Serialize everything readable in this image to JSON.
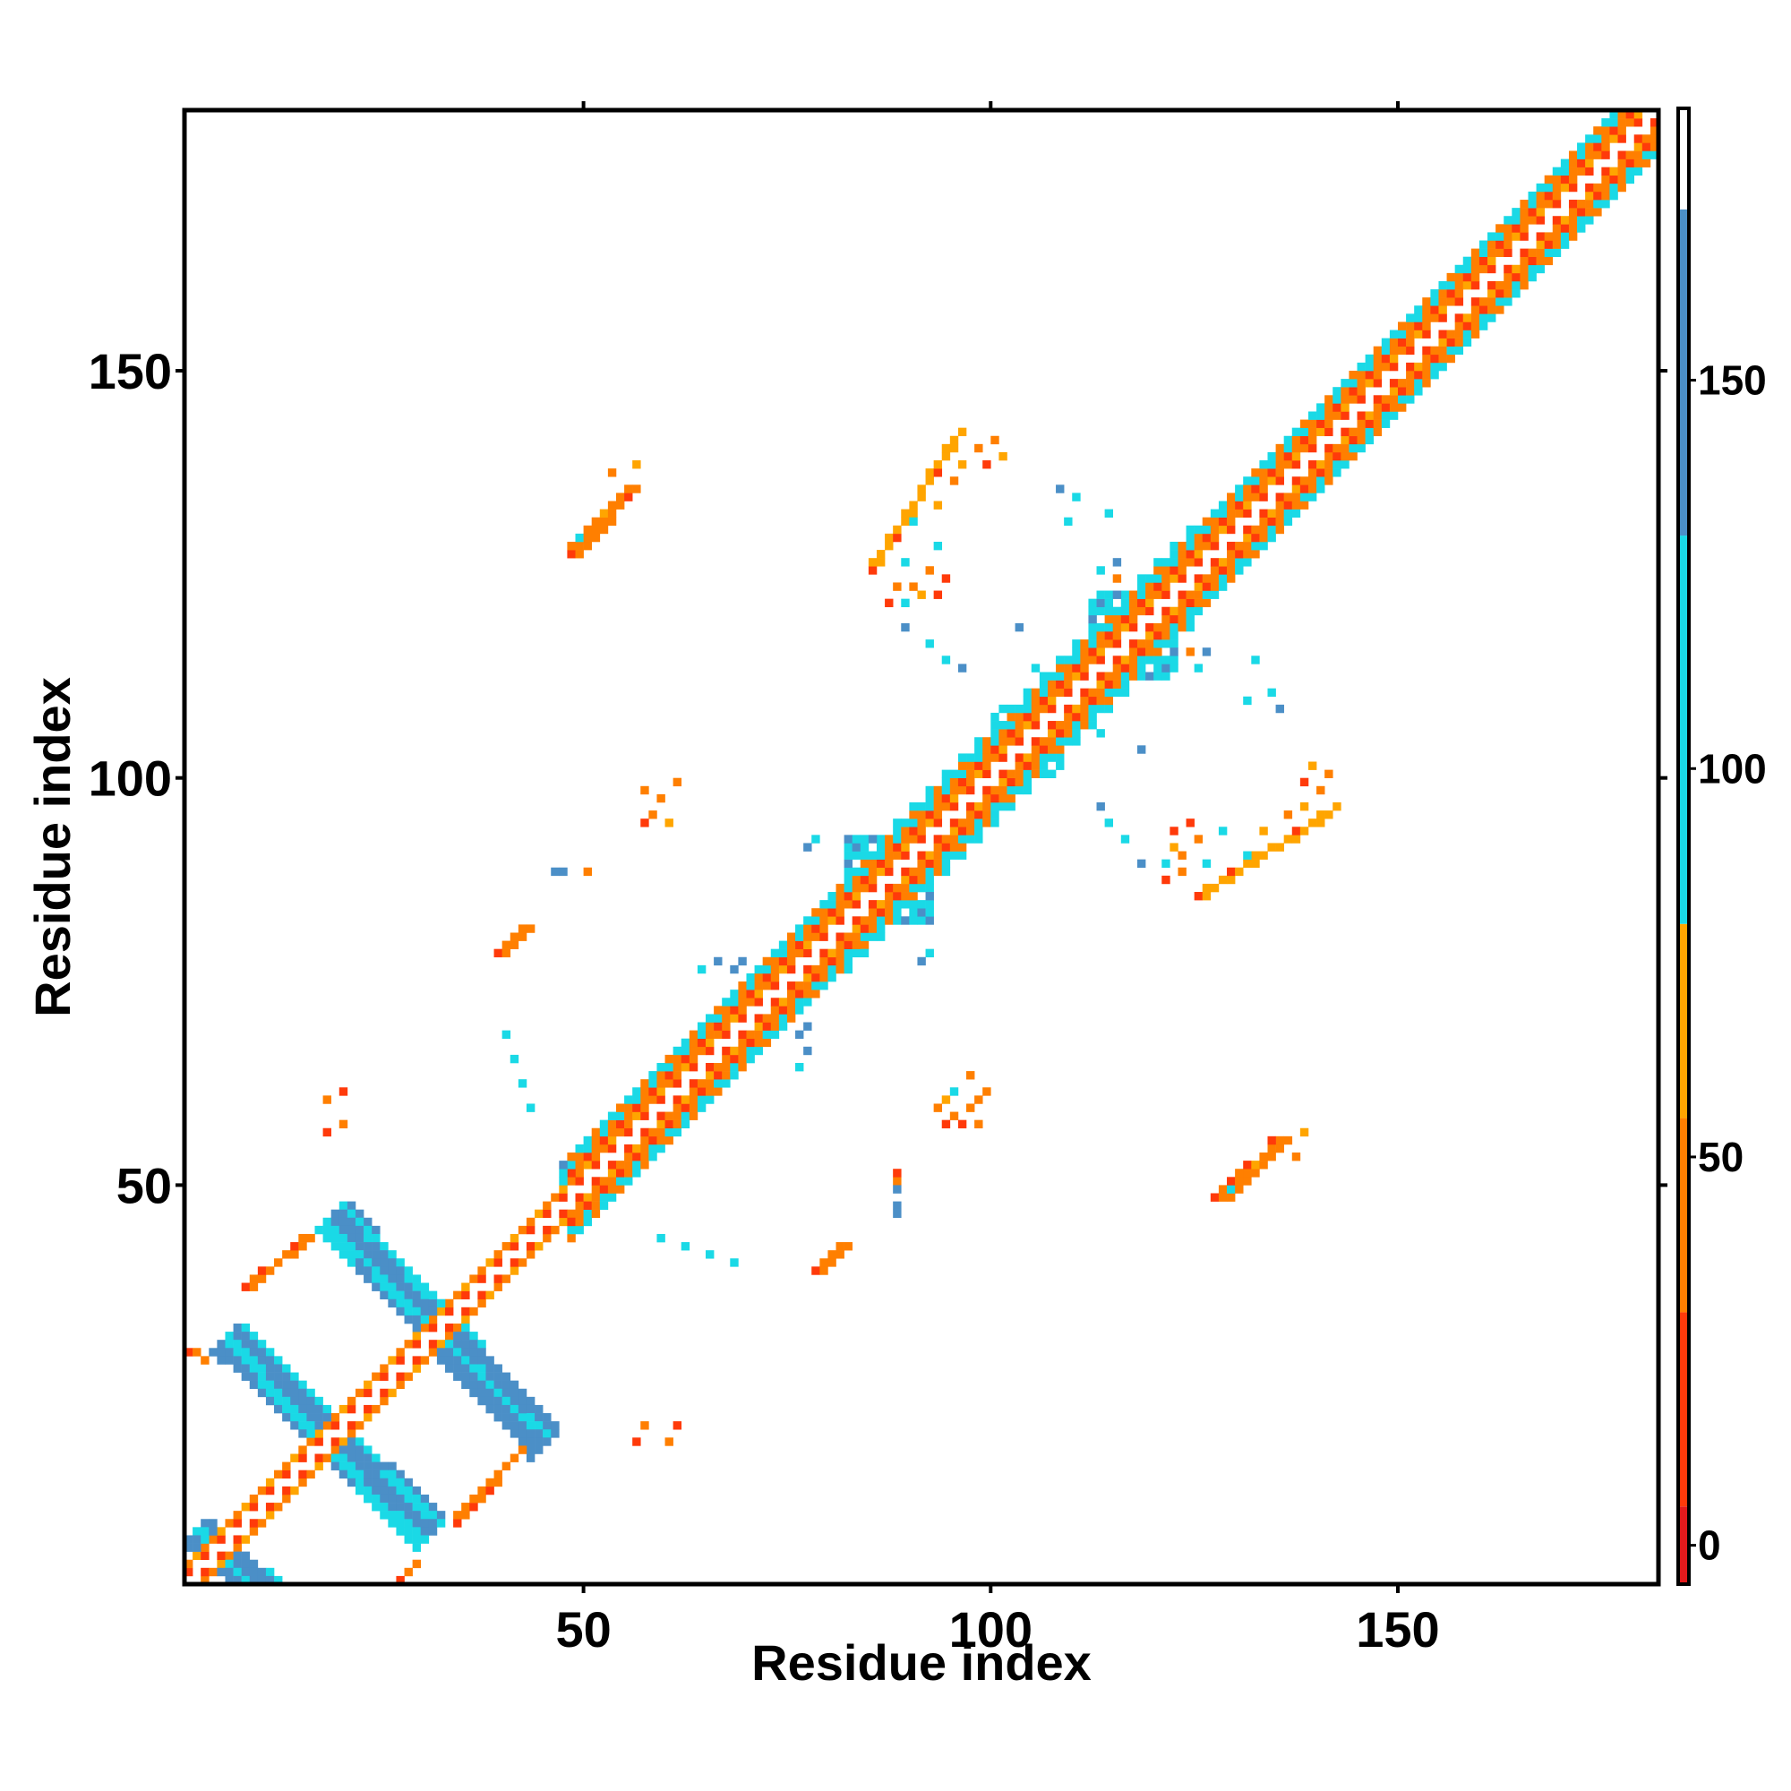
{
  "chart_data": {
    "type": "heatmap",
    "title": "",
    "xlabel": "Residue index",
    "ylabel": "Residue index",
    "xlim": [
      1,
      181
    ],
    "ylim": [
      1,
      181
    ],
    "x_ticks": [
      50,
      100,
      150
    ],
    "y_ticks": [
      50,
      100,
      150
    ],
    "x_tick_labels": [
      "50",
      "100",
      "150"
    ],
    "y_tick_labels": [
      "50",
      "100",
      "150"
    ],
    "grid": false,
    "legend": "colorbar-right",
    "colorbar": {
      "range": [
        -5,
        185
      ],
      "ticks": [
        0,
        50,
        100,
        150
      ],
      "tick_labels": [
        "0",
        "50",
        "100",
        "150"
      ],
      "segments": [
        {
          "from": -5,
          "to": 5,
          "color": "#e41a1c"
        },
        {
          "from": 5,
          "to": 30,
          "color": "#ff3a0a"
        },
        {
          "from": 30,
          "to": 55,
          "color": "#ff7f00"
        },
        {
          "from": 55,
          "to": 80,
          "color": "#ffa500"
        },
        {
          "from": 80,
          "to": 130,
          "color": "#1ad9e6"
        },
        {
          "from": 130,
          "to": 172,
          "color": "#4b8fc7"
        },
        {
          "from": 172,
          "to": 185,
          "color": "#ffffff"
        }
      ]
    },
    "main_diagonal": [
      {
        "from": 1,
        "to": 50,
        "band": 2
      },
      {
        "from": 48,
        "to": 85,
        "band": 5
      },
      {
        "from": 82,
        "to": 125,
        "band": 6
      },
      {
        "from": 122,
        "to": 181,
        "band": 5
      }
    ],
    "anti_diagonal_strips": [
      {
        "x1": 2,
        "y1": 7,
        "x2": 11,
        "y2": -1,
        "w": 1.8,
        "value": 140
      },
      {
        "x1": 6,
        "y1": 31,
        "x2": 31,
        "y2": 7,
        "w": 2.2,
        "value": 140
      },
      {
        "x1": 19,
        "y1": 46,
        "x2": 45,
        "y2": 18,
        "w": 2.2,
        "value": 140
      }
    ],
    "thin_lines": [
      {
        "x1": 1,
        "y1": 29,
        "x2": 3,
        "y2": 28,
        "w": 0.7,
        "value": 50
      },
      {
        "x1": 8,
        "y1": 37,
        "x2": 18,
        "y2": 45,
        "w": 0.8,
        "value": 45
      },
      {
        "x1": 17,
        "y1": 20,
        "x2": 28,
        "y2": 9,
        "w": 0.9,
        "value": 10
      },
      {
        "x1": 34,
        "y1": 8,
        "x2": 43,
        "y2": 18,
        "w": 0.8,
        "value": 40
      },
      {
        "x1": 27,
        "y1": 1,
        "x2": 29,
        "y2": 3,
        "w": 0.6,
        "value": 45
      },
      {
        "x1": 38,
        "y1": 37,
        "x2": 42,
        "y2": 41,
        "w": 1.2,
        "value": 10
      },
      {
        "x1": 39,
        "y1": 78,
        "x2": 42,
        "y2": 81,
        "w": 1.0,
        "value": 40
      },
      {
        "x1": 78,
        "y1": 39,
        "x2": 81,
        "y2": 42,
        "w": 1.0,
        "value": 40
      },
      {
        "x1": 48,
        "y1": 127,
        "x2": 55,
        "y2": 135,
        "w": 1.0,
        "value": 50
      },
      {
        "x1": 127,
        "y1": 48,
        "x2": 135,
        "y2": 55,
        "w": 1.0,
        "value": 50
      },
      {
        "x1": 85,
        "y1": 125,
        "x2": 96,
        "y2": 142,
        "w": 0.8,
        "value": 60
      },
      {
        "x1": 125,
        "y1": 85,
        "x2": 142,
        "y2": 96,
        "w": 0.8,
        "value": 60
      }
    ],
    "blobs": [
      {
        "x": 48,
        "y": 51,
        "r": 1.8,
        "value": 110
      },
      {
        "x": 51,
        "y": 48,
        "r": 1.8,
        "value": 110
      },
      {
        "x": 84,
        "y": 90,
        "r": 2.8,
        "value": 105
      },
      {
        "x": 90,
        "y": 84,
        "r": 2.8,
        "value": 105
      },
      {
        "x": 102,
        "y": 106,
        "r": 2.6,
        "value": 110
      },
      {
        "x": 106,
        "y": 102,
        "r": 2.6,
        "value": 110
      },
      {
        "x": 114,
        "y": 120,
        "r": 2.2,
        "value": 110
      },
      {
        "x": 120,
        "y": 114,
        "r": 2.2,
        "value": 110
      }
    ],
    "scatter": [
      {
        "x": 20,
        "y": 57,
        "value": 40
      },
      {
        "x": 20,
        "y": 61,
        "value": 10
      },
      {
        "x": 57,
        "y": 20,
        "value": 40
      },
      {
        "x": 61,
        "y": 20,
        "value": 10
      },
      {
        "x": 40,
        "y": 68,
        "value": 110
      },
      {
        "x": 41,
        "y": 65,
        "value": 110
      },
      {
        "x": 42,
        "y": 62,
        "value": 110
      },
      {
        "x": 43,
        "y": 59,
        "value": 110
      },
      {
        "x": 68,
        "y": 40,
        "value": 110
      },
      {
        "x": 65,
        "y": 41,
        "value": 110
      },
      {
        "x": 62,
        "y": 42,
        "value": 110
      },
      {
        "x": 59,
        "y": 43,
        "value": 110
      },
      {
        "x": 46,
        "y": 88,
        "value": 140
      },
      {
        "x": 47,
        "y": 88,
        "value": 140
      },
      {
        "x": 50,
        "y": 88,
        "value": 40
      },
      {
        "x": 88,
        "y": 46,
        "value": 140
      },
      {
        "x": 88,
        "y": 47,
        "value": 140
      },
      {
        "x": 88,
        "y": 50,
        "value": 40
      },
      {
        "x": 57,
        "y": 94,
        "value": 10
      },
      {
        "x": 58,
        "y": 95,
        "value": 40
      },
      {
        "x": 60,
        "y": 94,
        "value": 60
      },
      {
        "x": 59,
        "y": 97,
        "value": 40
      },
      {
        "x": 61,
        "y": 99,
        "value": 40
      },
      {
        "x": 57,
        "y": 98,
        "value": 40
      },
      {
        "x": 94,
        "y": 57,
        "value": 10
      },
      {
        "x": 95,
        "y": 58,
        "value": 40
      },
      {
        "x": 94,
        "y": 60,
        "value": 60
      },
      {
        "x": 97,
        "y": 59,
        "value": 40
      },
      {
        "x": 99,
        "y": 61,
        "value": 40
      },
      {
        "x": 98,
        "y": 57,
        "value": 40
      },
      {
        "x": 64,
        "y": 76,
        "value": 110
      },
      {
        "x": 68,
        "y": 76,
        "value": 140
      },
      {
        "x": 76,
        "y": 64,
        "value": 110
      },
      {
        "x": 76,
        "y": 68,
        "value": 140
      },
      {
        "x": 77,
        "y": 66,
        "value": 140
      },
      {
        "x": 77,
        "y": 69,
        "value": 140
      },
      {
        "x": 66,
        "y": 77,
        "value": 140
      },
      {
        "x": 69,
        "y": 77,
        "value": 140
      },
      {
        "x": 88,
        "y": 49,
        "value": 140
      },
      {
        "x": 88,
        "y": 51,
        "value": 10
      },
      {
        "x": 91,
        "y": 77,
        "value": 140
      },
      {
        "x": 92,
        "y": 78,
        "value": 110
      },
      {
        "x": 77,
        "y": 91,
        "value": 140
      },
      {
        "x": 78,
        "y": 92,
        "value": 110
      },
      {
        "x": 93,
        "y": 59,
        "value": 40
      },
      {
        "x": 95,
        "y": 61,
        "value": 110
      },
      {
        "x": 96,
        "y": 57,
        "value": 10
      },
      {
        "x": 98,
        "y": 60,
        "value": 40
      },
      {
        "x": 97,
        "y": 63,
        "value": 50
      },
      {
        "x": 56,
        "y": 18,
        "value": 10
      },
      {
        "x": 60,
        "y": 18,
        "value": 50
      },
      {
        "x": 18,
        "y": 56,
        "value": 10
      },
      {
        "x": 18,
        "y": 60,
        "value": 50
      },
      {
        "x": 56,
        "y": 138,
        "value": 60
      },
      {
        "x": 53,
        "y": 137,
        "value": 40
      },
      {
        "x": 55,
        "y": 134,
        "value": 10
      },
      {
        "x": 52,
        "y": 132,
        "value": 60
      },
      {
        "x": 49,
        "y": 129,
        "value": 110
      },
      {
        "x": 138,
        "y": 56,
        "value": 60
      },
      {
        "x": 137,
        "y": 53,
        "value": 40
      },
      {
        "x": 134,
        "y": 55,
        "value": 10
      },
      {
        "x": 132,
        "y": 52,
        "value": 60
      },
      {
        "x": 129,
        "y": 49,
        "value": 110
      },
      {
        "x": 98,
        "y": 140,
        "value": 50
      },
      {
        "x": 96,
        "y": 138,
        "value": 60
      },
      {
        "x": 95,
        "y": 136,
        "value": 40
      },
      {
        "x": 93,
        "y": 133,
        "value": 60
      },
      {
        "x": 90,
        "y": 131,
        "value": 110
      },
      {
        "x": 140,
        "y": 98,
        "value": 50
      },
      {
        "x": 138,
        "y": 96,
        "value": 60
      },
      {
        "x": 136,
        "y": 95,
        "value": 40
      },
      {
        "x": 133,
        "y": 93,
        "value": 60
      },
      {
        "x": 131,
        "y": 90,
        "value": 110
      },
      {
        "x": 108,
        "y": 135,
        "value": 140
      },
      {
        "x": 110,
        "y": 134,
        "value": 110
      },
      {
        "x": 109,
        "y": 131,
        "value": 110
      },
      {
        "x": 114,
        "y": 132,
        "value": 110
      },
      {
        "x": 135,
        "y": 108,
        "value": 140
      },
      {
        "x": 134,
        "y": 110,
        "value": 110
      },
      {
        "x": 131,
        "y": 109,
        "value": 110
      },
      {
        "x": 132,
        "y": 114,
        "value": 110
      },
      {
        "x": 88,
        "y": 123,
        "value": 40
      },
      {
        "x": 87,
        "y": 121,
        "value": 10
      },
      {
        "x": 91,
        "y": 122,
        "value": 60
      },
      {
        "x": 93,
        "y": 122,
        "value": 10
      },
      {
        "x": 123,
        "y": 88,
        "value": 40
      },
      {
        "x": 121,
        "y": 87,
        "value": 10
      },
      {
        "x": 122,
        "y": 91,
        "value": 60
      },
      {
        "x": 122,
        "y": 93,
        "value": 10
      },
      {
        "x": 89,
        "y": 118,
        "value": 140
      },
      {
        "x": 92,
        "y": 116,
        "value": 110
      },
      {
        "x": 94,
        "y": 114,
        "value": 110
      },
      {
        "x": 96,
        "y": 113,
        "value": 140
      },
      {
        "x": 118,
        "y": 89,
        "value": 140
      },
      {
        "x": 116,
        "y": 92,
        "value": 110
      },
      {
        "x": 114,
        "y": 94,
        "value": 110
      },
      {
        "x": 113,
        "y": 96,
        "value": 140
      },
      {
        "x": 122,
        "y": 114,
        "value": 110
      },
      {
        "x": 124,
        "y": 115,
        "value": 40
      },
      {
        "x": 126,
        "y": 115,
        "value": 140
      },
      {
        "x": 125,
        "y": 113,
        "value": 110
      },
      {
        "x": 114,
        "y": 122,
        "value": 110
      },
      {
        "x": 115,
        "y": 124,
        "value": 40
      },
      {
        "x": 115,
        "y": 126,
        "value": 140
      },
      {
        "x": 113,
        "y": 125,
        "value": 110
      },
      {
        "x": 124,
        "y": 94,
        "value": 10
      },
      {
        "x": 125,
        "y": 92,
        "value": 40
      },
      {
        "x": 123,
        "y": 90,
        "value": 50
      },
      {
        "x": 121,
        "y": 89,
        "value": 110
      },
      {
        "x": 126,
        "y": 89,
        "value": 110
      },
      {
        "x": 94,
        "y": 124,
        "value": 10
      },
      {
        "x": 92,
        "y": 125,
        "value": 40
      },
      {
        "x": 90,
        "y": 123,
        "value": 50
      },
      {
        "x": 89,
        "y": 121,
        "value": 110
      },
      {
        "x": 89,
        "y": 126,
        "value": 110
      },
      {
        "x": 128,
        "y": 93,
        "value": 110
      },
      {
        "x": 93,
        "y": 128,
        "value": 110
      },
      {
        "x": 139,
        "y": 101,
        "value": 60
      },
      {
        "x": 141,
        "y": 100,
        "value": 40
      },
      {
        "x": 138,
        "y": 99,
        "value": 10
      },
      {
        "x": 101,
        "y": 139,
        "value": 60
      },
      {
        "x": 100,
        "y": 141,
        "value": 40
      },
      {
        "x": 99,
        "y": 138,
        "value": 10
      },
      {
        "x": 113,
        "y": 105,
        "value": 110
      },
      {
        "x": 105,
        "y": 113,
        "value": 110
      },
      {
        "x": 103,
        "y": 118,
        "value": 140
      },
      {
        "x": 118,
        "y": 103,
        "value": 140
      }
    ]
  }
}
